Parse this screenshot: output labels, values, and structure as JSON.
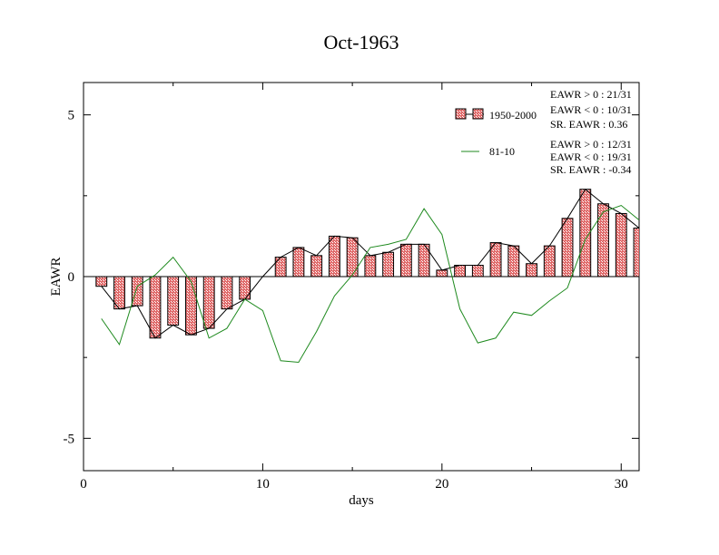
{
  "chart_data": {
    "type": "bar",
    "title": "Oct-1963",
    "xlabel": "days",
    "ylabel": "EAWR",
    "xlim": [
      0,
      31
    ],
    "ylim": [
      -6,
      6
    ],
    "x_ticks": [
      0,
      10,
      20,
      30
    ],
    "y_ticks": [
      5,
      0,
      -5
    ],
    "grid": false,
    "legend_position": "top-right",
    "days": [
      1,
      2,
      3,
      4,
      5,
      6,
      7,
      8,
      9,
      10,
      11,
      12,
      13,
      14,
      15,
      16,
      17,
      18,
      19,
      20,
      21,
      22,
      23,
      24,
      25,
      26,
      27,
      28,
      29,
      30,
      31
    ],
    "series": [
      {
        "name": "1950-2000",
        "kind": "bar",
        "color": "#e06a6a",
        "values": [
          -0.3,
          -1.0,
          -0.9,
          -1.9,
          -1.5,
          -1.8,
          -1.6,
          -1.0,
          -0.7,
          0.0,
          0.6,
          0.9,
          0.65,
          1.25,
          1.2,
          0.65,
          0.75,
          1.0,
          1.0,
          0.2,
          0.35,
          0.35,
          1.05,
          0.95,
          0.4,
          0.95,
          1.8,
          2.7,
          2.25,
          1.95,
          1.5
        ]
      },
      {
        "name": "81-10",
        "kind": "line",
        "color": "#1f8a1f",
        "values": [
          -1.3,
          -2.1,
          -0.3,
          0.05,
          0.6,
          -0.15,
          -1.9,
          -1.6,
          -0.7,
          -1.05,
          -2.6,
          -2.65,
          -1.7,
          -0.6,
          0.05,
          0.9,
          1.0,
          1.15,
          2.1,
          1.3,
          -1.0,
          -2.05,
          -1.9,
          -1.1,
          -1.2,
          -0.75,
          -0.35,
          1.15,
          2.0,
          2.2,
          1.75
        ]
      }
    ],
    "stats": {
      "series_1950_2000": [
        "EAWR > 0 : 21/31",
        "EAWR < 0 : 10/31",
        "SR. EAWR :  0.36"
      ],
      "series_81_10": [
        "EAWR > 0 : 12/31",
        "EAWR < 0 : 19/31",
        "SR. EAWR : -0.34"
      ]
    }
  }
}
